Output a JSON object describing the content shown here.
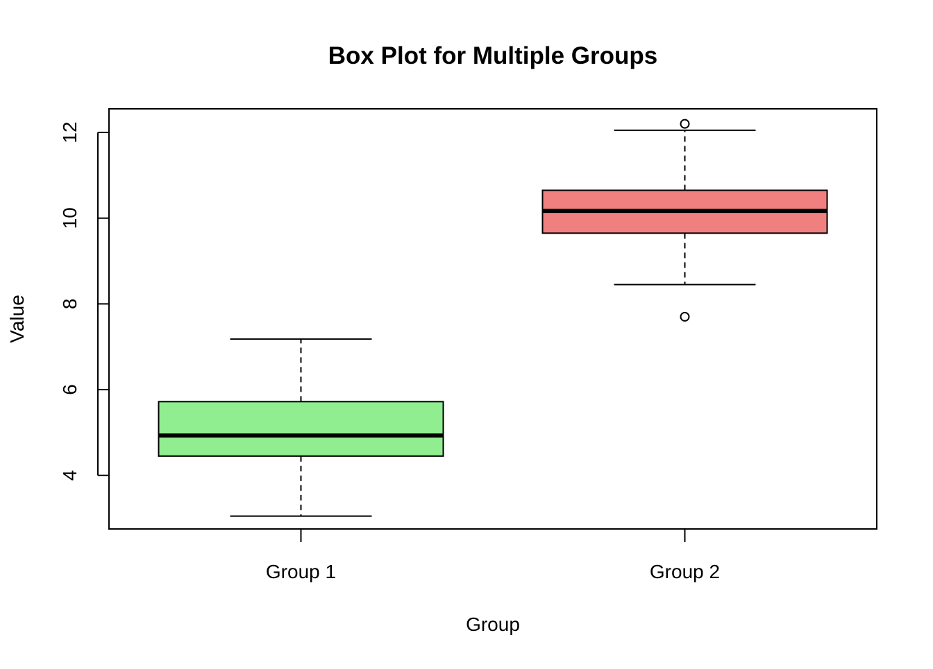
{
  "chart_data": {
    "type": "box",
    "title": "Box Plot for Multiple Groups",
    "xlabel": "Group",
    "ylabel": "Value",
    "categories": [
      "Group 1",
      "Group 2"
    ],
    "ylim": [
      2.75,
      12.55
    ],
    "yticks": [
      4,
      6,
      8,
      10,
      12
    ],
    "grid": false,
    "series": [
      {
        "category": "Group 1",
        "color": "#90EE90",
        "whisker_low": 3.05,
        "q1": 4.45,
        "median": 4.93,
        "q3": 5.72,
        "whisker_high": 7.18,
        "outliers": []
      },
      {
        "category": "Group 2",
        "color": "#F08080",
        "whisker_low": 8.45,
        "q1": 9.65,
        "median": 10.17,
        "q3": 10.65,
        "whisker_high": 12.05,
        "outliers": [
          12.2,
          7.7
        ]
      }
    ]
  }
}
